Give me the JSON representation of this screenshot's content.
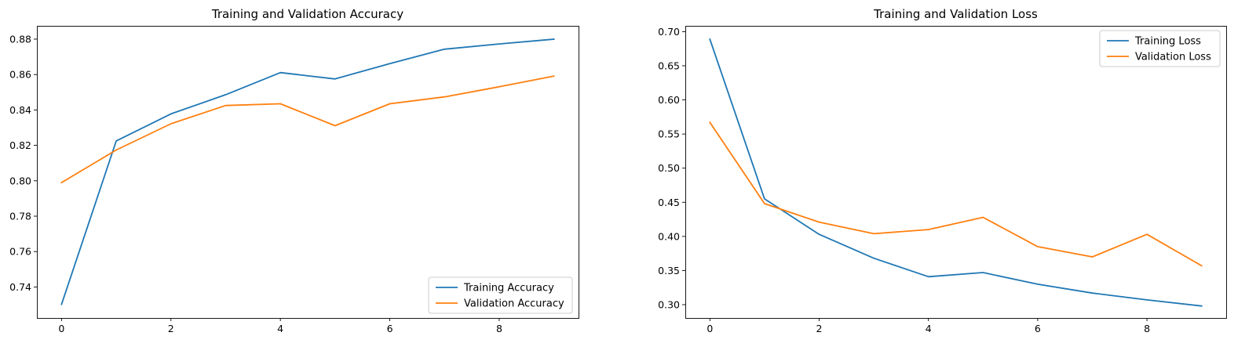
{
  "chart_data": [
    {
      "type": "line",
      "title": "Training and Validation Accuracy",
      "xlabel": "",
      "ylabel": "",
      "xlim": [
        -0.45,
        9.45
      ],
      "ylim": [
        0.7225,
        0.8875
      ],
      "xticks": [
        0,
        2,
        4,
        6,
        8
      ],
      "xtick_labels": [
        "0",
        "2",
        "4",
        "6",
        "8"
      ],
      "yticks": [
        0.74,
        0.76,
        0.78,
        0.8,
        0.82,
        0.84,
        0.86,
        0.88
      ],
      "ytick_labels": [
        "0.74",
        "0.76",
        "0.78",
        "0.80",
        "0.82",
        "0.84",
        "0.86",
        "0.88"
      ],
      "grid": false,
      "legend_position": "lower right",
      "x": [
        0,
        1,
        2,
        3,
        4,
        5,
        6,
        7,
        8,
        9
      ],
      "series": [
        {
          "name": "Training Accuracy",
          "color": "#1f77b4",
          "values": [
            0.7302,
            0.8225,
            0.8378,
            0.8486,
            0.8611,
            0.8575,
            0.8662,
            0.8743,
            0.8773,
            0.88
          ]
        },
        {
          "name": "Validation Accuracy",
          "color": "#ff7f0e",
          "values": [
            0.799,
            0.8174,
            0.8322,
            0.8425,
            0.8435,
            0.8311,
            0.8435,
            0.8474,
            0.8531,
            0.8591
          ]
        }
      ]
    },
    {
      "type": "line",
      "title": "Training and Validation Loss",
      "xlabel": "",
      "ylabel": "",
      "xlim": [
        -0.45,
        9.45
      ],
      "ylim": [
        0.2805,
        0.7085
      ],
      "xticks": [
        0,
        2,
        4,
        6,
        8
      ],
      "xtick_labels": [
        "0",
        "2",
        "4",
        "6",
        "8"
      ],
      "yticks": [
        0.3,
        0.35,
        0.4,
        0.45,
        0.5,
        0.55,
        0.6,
        0.65,
        0.7
      ],
      "ytick_labels": [
        "0.30",
        "0.35",
        "0.40",
        "0.45",
        "0.50",
        "0.55",
        "0.60",
        "0.65",
        "0.70"
      ],
      "grid": false,
      "legend_position": "upper right",
      "x": [
        0,
        1,
        2,
        3,
        4,
        5,
        6,
        7,
        8,
        9
      ],
      "series": [
        {
          "name": "Training Loss",
          "color": "#1f77b4",
          "values": [
            0.689,
            0.455,
            0.403,
            0.368,
            0.341,
            0.347,
            0.33,
            0.317,
            0.307,
            0.298
          ]
        },
        {
          "name": "Validation Loss",
          "color": "#ff7f0e",
          "values": [
            0.567,
            0.448,
            0.421,
            0.404,
            0.41,
            0.428,
            0.385,
            0.37,
            0.403,
            0.357
          ]
        }
      ]
    }
  ]
}
